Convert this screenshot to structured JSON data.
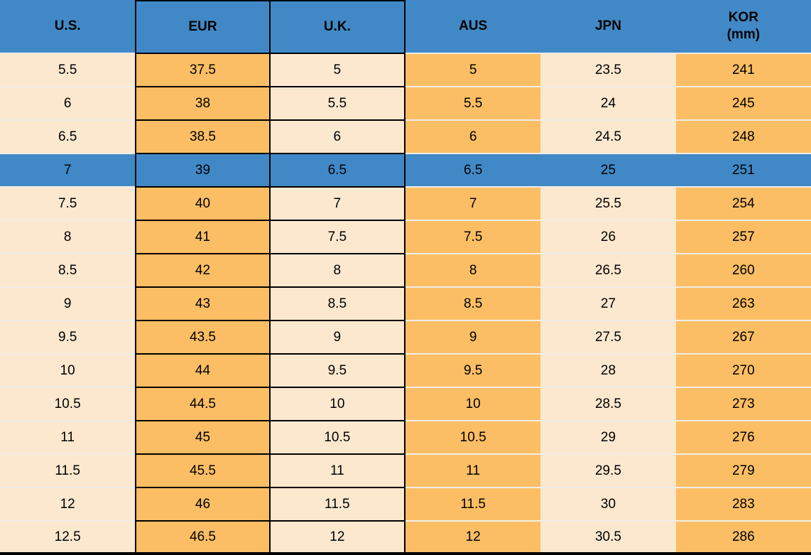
{
  "colors": {
    "header_blue": "#4189C6",
    "highlight_blue": "#4189C6",
    "orange_cell": "#FCBE64",
    "cream_cell": "#FCE8CF",
    "row_separator": "#EFEDE8",
    "box_border": "#000000",
    "text": "#000000"
  },
  "chart_data": {
    "type": "table",
    "columns": [
      {
        "label": "U.S."
      },
      {
        "label": "EUR"
      },
      {
        "label": "U.K."
      },
      {
        "label": "AUS"
      },
      {
        "label": "JPN"
      },
      {
        "label": "KOR",
        "sub": "(mm)"
      }
    ],
    "column_keys": [
      "us",
      "eur",
      "uk",
      "aus",
      "jpn",
      "kor"
    ],
    "column_fills": [
      "cream",
      "orange",
      "cream",
      "orange",
      "cream",
      "orange"
    ],
    "boxed_columns": [
      "eur",
      "uk"
    ],
    "highlighted_row_index": 3,
    "rows": [
      [
        "5.5",
        "37.5",
        "5",
        "5",
        "23.5",
        "241"
      ],
      [
        "6",
        "38",
        "5.5",
        "5.5",
        "24",
        "245"
      ],
      [
        "6.5",
        "38.5",
        "6",
        "6",
        "24.5",
        "248"
      ],
      [
        "7",
        "39",
        "6.5",
        "6.5",
        "25",
        "251"
      ],
      [
        "7.5",
        "40",
        "7",
        "7",
        "25.5",
        "254"
      ],
      [
        "8",
        "41",
        "7.5",
        "7.5",
        "26",
        "257"
      ],
      [
        "8.5",
        "42",
        "8",
        "8",
        "26.5",
        "260"
      ],
      [
        "9",
        "43",
        "8.5",
        "8.5",
        "27",
        "263"
      ],
      [
        "9.5",
        "43.5",
        "9",
        "9",
        "27.5",
        "267"
      ],
      [
        "10",
        "44",
        "9.5",
        "9.5",
        "28",
        "270"
      ],
      [
        "10.5",
        "44.5",
        "10",
        "10",
        "28.5",
        "273"
      ],
      [
        "11",
        "45",
        "10.5",
        "10.5",
        "29",
        "276"
      ],
      [
        "11.5",
        "45.5",
        "11",
        "11",
        "29.5",
        "279"
      ],
      [
        "12",
        "46",
        "11.5",
        "11.5",
        "30",
        "283"
      ],
      [
        "12.5",
        "46.5",
        "12",
        "12",
        "30.5",
        "286"
      ]
    ]
  }
}
